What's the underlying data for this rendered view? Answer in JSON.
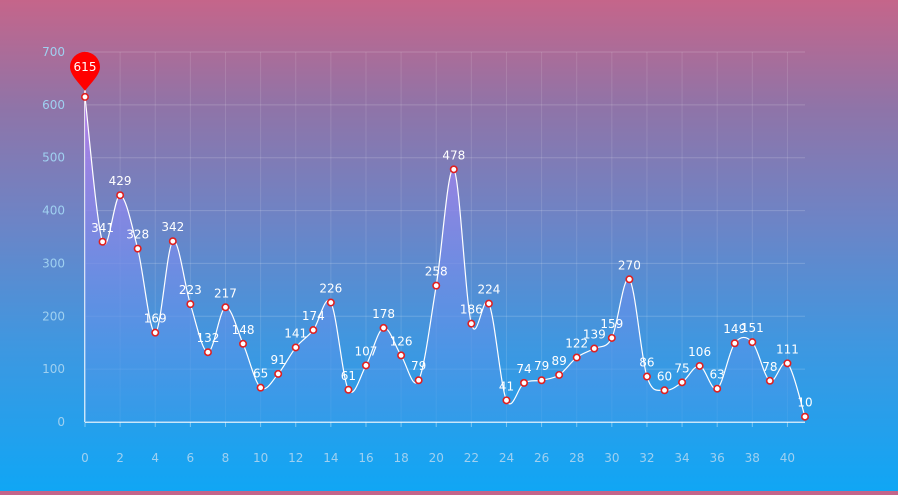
{
  "chart_data": {
    "type": "area",
    "title": "",
    "xlabel": "",
    "ylabel": "",
    "x": [
      0,
      1,
      2,
      3,
      4,
      5,
      6,
      7,
      8,
      9,
      10,
      11,
      12,
      13,
      14,
      15,
      16,
      17,
      18,
      19,
      20,
      21,
      22,
      23,
      24,
      25,
      26,
      27,
      28,
      29,
      30,
      31,
      32,
      33,
      34,
      35,
      36,
      37,
      38,
      39,
      40,
      41
    ],
    "values": [
      615,
      341,
      429,
      328,
      169,
      342,
      223,
      132,
      217,
      148,
      65,
      91,
      141,
      174,
      226,
      61,
      107,
      178,
      126,
      79,
      258,
      478,
      186,
      224,
      41,
      74,
      79,
      89,
      122,
      139,
      159,
      270,
      86,
      60,
      75,
      106,
      63,
      149,
      151,
      78,
      111,
      10
    ],
    "xticks": [
      "0",
      "2",
      "4",
      "6",
      "8",
      "10",
      "12",
      "14",
      "16",
      "18",
      "20",
      "22",
      "24",
      "26",
      "28",
      "30",
      "32",
      "34",
      "36",
      "38",
      "40"
    ],
    "yticks": [
      "0",
      "100",
      "200",
      "300",
      "400",
      "500",
      "600",
      "700"
    ],
    "ylim": [
      0,
      700
    ],
    "grid": true,
    "max_marker": {
      "label": "615",
      "color": "#ff0000"
    },
    "colors": {
      "line": "#ffffff",
      "area_top": "#b57ee8",
      "area_bottom": "#3a9ae8",
      "point_fill": "#ffffff",
      "point_stroke": "#e02020",
      "axis": "#ffffff",
      "tick_text": "#9fd0f0",
      "grid": "#ffffff"
    }
  }
}
